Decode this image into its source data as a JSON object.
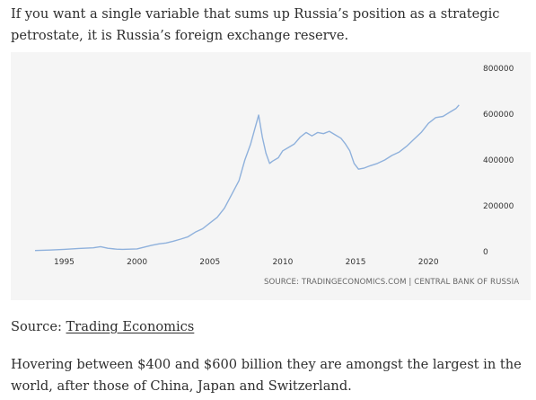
{
  "article": {
    "intro": "If you want a single variable that sums up Russia’s position as a strategic petrostate, it is Russia’s foreign exchange reserve.",
    "source_label": "Source: ",
    "source_link": "Trading Economics",
    "outro": "Hovering between $400 and $600 billion they are amongst the largest in the world, after those of China, Japan and Switzerland."
  },
  "chart_data": {
    "type": "line",
    "title": "",
    "xlabel": "",
    "ylabel": "",
    "credit": "SOURCE: TRADINGECONOMICS.COM | CENTRAL BANK OF RUSSIA",
    "x_ticks": [
      "1995",
      "2000",
      "2005",
      "2010",
      "2015",
      "2020"
    ],
    "y_ticks": [
      "0",
      "200000",
      "400000",
      "600000",
      "800000"
    ],
    "xlim": [
      1993,
      2023.5
    ],
    "ylim": [
      0,
      800000
    ],
    "y_axis_side": "right",
    "grid": false,
    "line_color": "#8fb1dc",
    "series": [
      {
        "name": "",
        "points": [
          [
            1993.0,
            5000
          ],
          [
            1994.0,
            7000
          ],
          [
            1995.0,
            10000
          ],
          [
            1996.0,
            14000
          ],
          [
            1997.0,
            17000
          ],
          [
            1997.5,
            22000
          ],
          [
            1998.0,
            15000
          ],
          [
            1998.6,
            11000
          ],
          [
            1999.0,
            10000
          ],
          [
            2000.0,
            12000
          ],
          [
            2000.5,
            20000
          ],
          [
            2001.0,
            28000
          ],
          [
            2001.5,
            34000
          ],
          [
            2002.0,
            38000
          ],
          [
            2002.5,
            46000
          ],
          [
            2003.0,
            55000
          ],
          [
            2003.5,
            65000
          ],
          [
            2004.0,
            85000
          ],
          [
            2004.5,
            100000
          ],
          [
            2005.0,
            125000
          ],
          [
            2005.5,
            150000
          ],
          [
            2006.0,
            190000
          ],
          [
            2006.5,
            250000
          ],
          [
            2007.0,
            310000
          ],
          [
            2007.4,
            400000
          ],
          [
            2007.8,
            470000
          ],
          [
            2008.1,
            540000
          ],
          [
            2008.35,
            596000
          ],
          [
            2008.6,
            500000
          ],
          [
            2008.85,
            430000
          ],
          [
            2009.1,
            385000
          ],
          [
            2009.3,
            395000
          ],
          [
            2009.7,
            410000
          ],
          [
            2010.0,
            440000
          ],
          [
            2010.4,
            455000
          ],
          [
            2010.8,
            470000
          ],
          [
            2011.2,
            500000
          ],
          [
            2011.6,
            520000
          ],
          [
            2012.0,
            505000
          ],
          [
            2012.4,
            520000
          ],
          [
            2012.8,
            515000
          ],
          [
            2013.2,
            525000
          ],
          [
            2013.6,
            510000
          ],
          [
            2014.0,
            495000
          ],
          [
            2014.3,
            470000
          ],
          [
            2014.6,
            440000
          ],
          [
            2014.9,
            385000
          ],
          [
            2015.2,
            360000
          ],
          [
            2015.6,
            365000
          ],
          [
            2016.0,
            375000
          ],
          [
            2016.5,
            385000
          ],
          [
            2017.0,
            400000
          ],
          [
            2017.5,
            420000
          ],
          [
            2018.0,
            435000
          ],
          [
            2018.5,
            460000
          ],
          [
            2019.0,
            490000
          ],
          [
            2019.5,
            520000
          ],
          [
            2020.0,
            560000
          ],
          [
            2020.5,
            585000
          ],
          [
            2021.0,
            590000
          ],
          [
            2021.5,
            610000
          ],
          [
            2021.9,
            625000
          ],
          [
            2022.1,
            640000
          ]
        ]
      }
    ]
  }
}
